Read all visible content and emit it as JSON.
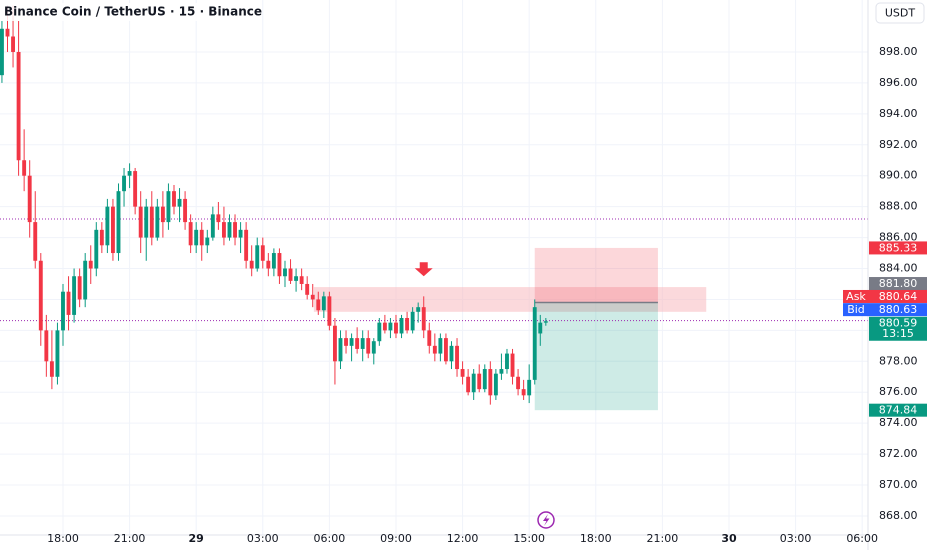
{
  "symbol_title": "Binance Coin / TetherUS · 15 · Binance",
  "currency": "USDT",
  "chart_data": {
    "type": "candlestick",
    "up_color": "#089981",
    "down_color": "#f23645",
    "x": [
      -11,
      -10,
      -9,
      -8,
      -7,
      -6,
      -5,
      -4,
      -3,
      -2,
      -1,
      0,
      1,
      2,
      3,
      4,
      5,
      6,
      7,
      8,
      9,
      10,
      11,
      12,
      13,
      14,
      15,
      16,
      17,
      18,
      19,
      20,
      21,
      22,
      23,
      24,
      25,
      26,
      27,
      28,
      29,
      30,
      31,
      32,
      33,
      34,
      35,
      36,
      37,
      38,
      39,
      40,
      41,
      42,
      43,
      44,
      45,
      46,
      47,
      48,
      49,
      50,
      51,
      52,
      53,
      54,
      55,
      56,
      57,
      58,
      59,
      60,
      61,
      62,
      63,
      64,
      65,
      66,
      67,
      68,
      69,
      70,
      71,
      72,
      73,
      74,
      75,
      76,
      77,
      78,
      79,
      80,
      81,
      82,
      83,
      84,
      85,
      86,
      87
    ],
    "open": [
      896.5,
      899.5,
      899,
      898,
      891,
      890,
      887,
      884.5,
      880,
      878,
      877,
      880,
      882.5,
      881,
      883.5,
      882,
      884.5,
      884,
      886.5,
      885.5,
      888,
      885,
      889,
      890,
      890.3,
      888,
      886,
      888,
      886,
      888,
      887,
      889,
      888,
      888.5,
      887,
      885.5,
      886.5,
      885.5,
      886,
      887.5,
      887,
      886,
      887,
      886,
      886.5,
      884.5,
      884,
      885.5,
      884.5,
      884,
      885,
      883.5,
      884,
      883.2,
      883.5,
      883,
      882.3,
      882,
      881.3,
      882.2,
      880.3,
      878,
      879.5,
      879,
      879.5,
      878.8,
      879.5,
      878.5,
      879.3,
      880.5,
      880,
      880.5,
      879.8,
      880.8,
      880,
      881.2,
      881.5,
      880,
      879,
      878.5,
      879.5,
      878,
      879,
      877.5,
      877,
      876,
      877.2,
      876.2,
      877.5,
      875.8,
      877.2,
      877.5,
      878.5,
      877,
      876.2,
      875.8,
      876.8,
      879.8,
      880.5
    ],
    "high": [
      900,
      901,
      901,
      900,
      893,
      891,
      889,
      885,
      881,
      880,
      880.5,
      883,
      883.5,
      884,
      884,
      885,
      885.5,
      887,
      887,
      888.5,
      888.5,
      889.5,
      890.5,
      890.8,
      890.5,
      889,
      888.5,
      889,
      888.5,
      889,
      889.5,
      889.4,
      889.2,
      889,
      887.5,
      887,
      887,
      886.5,
      888,
      888.3,
      888,
      887.5,
      887.5,
      887,
      887,
      885.5,
      886,
      886,
      885,
      885.3,
      885.3,
      884.5,
      884.6,
      884,
      884,
      883.5,
      883,
      882.5,
      882.5,
      882.5,
      880.8,
      880,
      880,
      879.8,
      880.2,
      880,
      880,
      879.5,
      880.8,
      881,
      880.8,
      881,
      881,
      881.2,
      881.5,
      881.8,
      882.2,
      880.5,
      879.8,
      879.8,
      879.8,
      879.3,
      879.5,
      878,
      877.5,
      877.5,
      877.8,
      877.8,
      878,
      877.5,
      878.5,
      878.8,
      878.8,
      877.5,
      876.8,
      877.8,
      882,
      881,
      880.8
    ],
    "low": [
      896,
      898,
      897,
      890,
      889,
      886,
      884,
      879,
      877,
      876.2,
      876.5,
      879,
      880,
      880.5,
      881.5,
      881.5,
      883,
      883.5,
      885,
      885,
      884.5,
      884.5,
      888,
      889.2,
      887.5,
      885,
      884.5,
      885.5,
      885.8,
      886,
      886.5,
      887.5,
      887,
      886.5,
      885,
      885,
      884.5,
      885,
      885.8,
      886.5,
      885.5,
      885.8,
      885.5,
      885,
      884,
      883.5,
      883.8,
      884,
      883.5,
      883.5,
      883,
      882.8,
      883,
      882.5,
      882.6,
      882,
      881.5,
      881,
      880.8,
      880,
      876.5,
      877.5,
      878.5,
      878,
      878.5,
      878,
      878.2,
      877.8,
      879,
      879.8,
      879.5,
      879.5,
      879.5,
      879.8,
      879.8,
      880.5,
      879.5,
      878.5,
      878,
      878,
      877.8,
      877.5,
      877,
      876.5,
      875.8,
      875.5,
      876,
      876,
      875.2,
      875.5,
      876.8,
      877.2,
      876.5,
      875.8,
      875.5,
      875.3,
      876.5,
      879,
      880.3
    ],
    "close": [
      899.5,
      899,
      898,
      891,
      890,
      887,
      884.5,
      880,
      878,
      877,
      880,
      882.5,
      881,
      883.5,
      882,
      884.5,
      884,
      886.5,
      885.5,
      888,
      885,
      889,
      890,
      890.3,
      888,
      886,
      888,
      886,
      888,
      887,
      889,
      888,
      888.5,
      887,
      885.5,
      886.5,
      885.5,
      886,
      887.5,
      887,
      886,
      887,
      886,
      886.5,
      884.5,
      884,
      885.5,
      884.5,
      884,
      885,
      883.5,
      884,
      883.2,
      883.5,
      883,
      882.3,
      882,
      881.3,
      882.2,
      880.3,
      878,
      879.5,
      879,
      879.5,
      878.8,
      879.5,
      878.5,
      879.3,
      880.5,
      880,
      880.5,
      879.8,
      880.8,
      880,
      881.2,
      881.5,
      880,
      879,
      878.5,
      879.5,
      878,
      879,
      877.5,
      877,
      876,
      877.2,
      876.2,
      877.5,
      875.8,
      877.2,
      877.5,
      878.5,
      877,
      876.2,
      875.8,
      876.8,
      881.5,
      880.5,
      880.59
    ],
    "xlim": [
      -11.35,
      145.05
    ],
    "ylim": [
      866.77,
      901.36
    ],
    "xticks": [
      {
        "value": 0,
        "label": "18:00"
      },
      {
        "value": 12,
        "label": "21:00"
      },
      {
        "value": 24,
        "label": "29"
      },
      {
        "value": 36,
        "label": "03:00"
      },
      {
        "value": 48,
        "label": "06:00"
      },
      {
        "value": 60,
        "label": "09:00"
      },
      {
        "value": 72,
        "label": "12:00"
      },
      {
        "value": 84,
        "label": "15:00"
      },
      {
        "value": 96,
        "label": "18:00"
      },
      {
        "value": 108,
        "label": "21:00"
      },
      {
        "value": 120,
        "label": "30"
      },
      {
        "value": 132,
        "label": "03:00"
      },
      {
        "value": 144,
        "label": "06:00"
      }
    ],
    "yticks": [
      {
        "value": 868,
        "label": "868.00"
      },
      {
        "value": 870,
        "label": "870.00"
      },
      {
        "value": 872,
        "label": "872.00"
      },
      {
        "value": 874,
        "label": "874.00"
      },
      {
        "value": 876,
        "label": "876.00"
      },
      {
        "value": 878,
        "label": "878.00"
      },
      {
        "value": 880,
        "label": "880.00"
      },
      {
        "value": 882,
        "label": "882.00"
      },
      {
        "value": 884,
        "label": "884.00"
      },
      {
        "value": 886,
        "label": "886.00"
      },
      {
        "value": 888,
        "label": "888.00"
      },
      {
        "value": 890,
        "label": "890.00"
      },
      {
        "value": 892,
        "label": "892.00"
      },
      {
        "value": 894,
        "label": "894.00"
      },
      {
        "value": 896,
        "label": "896.00"
      },
      {
        "value": 898,
        "label": "898.00"
      }
    ],
    "grid": true,
    "hlines": [
      {
        "value": 887.2,
        "color": "#9c27b0"
      },
      {
        "value": 880.63,
        "color": "#9c27b0"
      }
    ],
    "zone": {
      "x": [
        45.2,
        115.9
      ],
      "from": 881.2,
      "to": 882.8,
      "color": "#f7b9bf"
    },
    "position": {
      "x": [
        85,
        107.2
      ],
      "entry": 881.8,
      "stop": 885.33,
      "target": 874.84
    },
    "arrow": {
      "x": 65,
      "value": 883.5,
      "color": "#f23645"
    },
    "price_labels": [
      {
        "value": 885.33,
        "color": "#f23645"
      },
      {
        "value": 881.8,
        "label": "881.80",
        "color": "#787b86"
      },
      {
        "tag": "Ask",
        "value": 880.64,
        "color": "#f23645"
      },
      {
        "tag": "Bid",
        "value": 880.63,
        "color": "#2962ff"
      },
      {
        "value": 880.59,
        "color": "#089981",
        "countdown": "13:15"
      },
      {
        "value": 874.84,
        "color": "#089981"
      }
    ]
  }
}
